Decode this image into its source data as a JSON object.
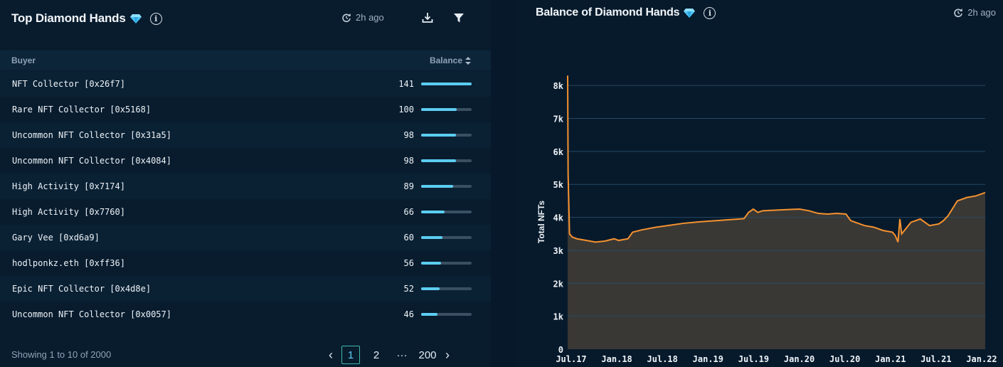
{
  "left_panel": {
    "title": "Top Diamond Hands",
    "info_label": "i",
    "refresh_label": "2h ago",
    "columns": {
      "buyer": "Buyer",
      "balance": "Balance"
    },
    "rows": [
      {
        "name": "NFT Collector [0x26f7]",
        "balance": "141",
        "ratio": 1.0
      },
      {
        "name": "Rare NFT Collector [0x5168]",
        "balance": "100",
        "ratio": 0.709
      },
      {
        "name": "Uncommon NFT Collector [0x31a5]",
        "balance": "98",
        "ratio": 0.695
      },
      {
        "name": "Uncommon NFT Collector [0x4084]",
        "balance": "98",
        "ratio": 0.695
      },
      {
        "name": "High Activity [0x7174]",
        "balance": "89",
        "ratio": 0.631
      },
      {
        "name": "High Activity [0x7760]",
        "balance": "66",
        "ratio": 0.468
      },
      {
        "name": "Gary Vee [0xd6a9]",
        "balance": "60",
        "ratio": 0.426
      },
      {
        "name": "hodlponkz.eth [0xff36]",
        "balance": "56",
        "ratio": 0.397
      },
      {
        "name": "Epic NFT Collector [0x4d8e]",
        "balance": "52",
        "ratio": 0.369
      },
      {
        "name": "Uncommon NFT Collector [0x0057]",
        "balance": "46",
        "ratio": 0.326
      }
    ],
    "footer": "Showing 1 to 10 of 2000",
    "pagination": {
      "prev": "‹",
      "pages": [
        "1",
        "2"
      ],
      "ellipsis": "···",
      "last": "200",
      "next": "›",
      "current": "1"
    }
  },
  "right_panel": {
    "title": "Balance of Diamond Hands",
    "info_label": "i",
    "refresh_label": "2h ago"
  },
  "colors": {
    "accent_cyan": "#5ccdf2",
    "line_orange": "#f5922f",
    "area_fill": "#3a3835",
    "gem_blue": "#4fc3f7"
  },
  "chart_data": {
    "type": "area",
    "title": "Balance of Diamond Hands",
    "ylabel": "Total NFTs",
    "xlabel": "",
    "ylim": [
      0,
      8500
    ],
    "y_ticks": [
      0,
      1000,
      2000,
      3000,
      4000,
      5000,
      6000,
      7000,
      8000
    ],
    "y_tick_labels": [
      "0",
      "1k",
      "2k",
      "3k",
      "4k",
      "5k",
      "6k",
      "7k",
      "8k"
    ],
    "x_tick_labels": [
      "Jul.17",
      "Jan.18",
      "Jul.18",
      "Jan.19",
      "Jul.19",
      "Jan.20",
      "Jul.20",
      "Jan.21",
      "Jul.21",
      "Jan.22"
    ],
    "grid": true,
    "x": [
      2017.5,
      2017.505,
      2017.52,
      2017.55,
      2017.6,
      2017.7,
      2017.8,
      2017.9,
      2018.0,
      2018.05,
      2018.15,
      2018.2,
      2018.3,
      2018.45,
      2018.6,
      2018.75,
      2018.9,
      2019.0,
      2019.1,
      2019.2,
      2019.3,
      2019.4,
      2019.45,
      2019.5,
      2019.55,
      2019.6,
      2019.75,
      2019.9,
      2020.0,
      2020.1,
      2020.2,
      2020.3,
      2020.4,
      2020.5,
      2020.55,
      2020.6,
      2020.7,
      2020.8,
      2020.9,
      2021.0,
      2021.03,
      2021.06,
      2021.08,
      2021.1,
      2021.2,
      2021.3,
      2021.4,
      2021.5,
      2021.55,
      2021.6,
      2021.7,
      2021.8,
      2021.9,
      2022.0
    ],
    "values": [
      8300,
      5300,
      3500,
      3400,
      3350,
      3300,
      3250,
      3280,
      3350,
      3300,
      3350,
      3550,
      3620,
      3700,
      3760,
      3820,
      3860,
      3880,
      3900,
      3920,
      3940,
      3960,
      4150,
      4250,
      4150,
      4200,
      4220,
      4240,
      4250,
      4200,
      4120,
      4100,
      4120,
      4100,
      3900,
      3850,
      3750,
      3700,
      3600,
      3550,
      3450,
      3250,
      3950,
      3500,
      3850,
      3950,
      3750,
      3800,
      3900,
      4050,
      4500,
      4600,
      4650,
      4750
    ]
  }
}
